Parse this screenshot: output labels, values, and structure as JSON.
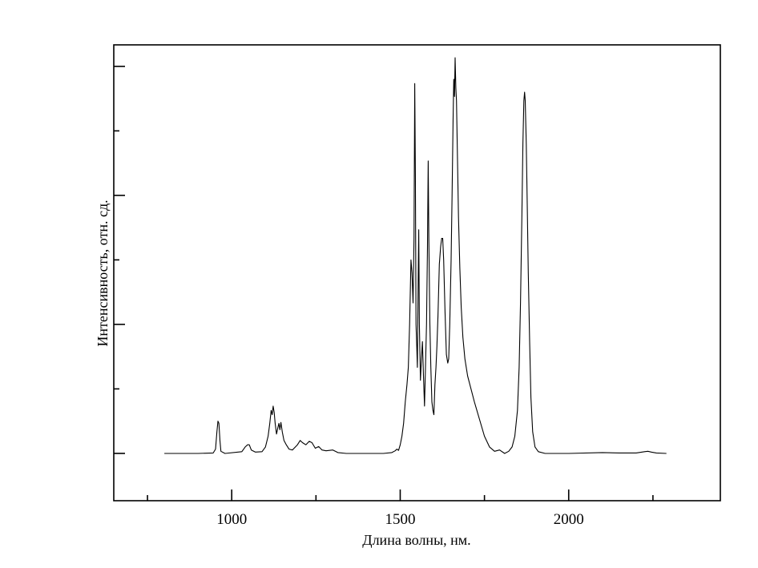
{
  "chart_data": {
    "type": "line",
    "title": "",
    "xlabel": "Длина волны, нм.",
    "ylabel": "Интенсивность, отн. сд.",
    "xlim": [
      650,
      2450
    ],
    "ylim": [
      -0.11,
      0.95
    ],
    "x_ticks_major": [
      1000,
      1500,
      2000
    ],
    "x_ticks_minor": [
      750,
      1250,
      1750,
      2250
    ],
    "y_ticks_major": [
      0,
      0.3,
      0.6,
      0.9
    ],
    "y_ticks_minor": [
      0.15,
      0.45,
      0.75
    ],
    "grid": false,
    "series": [
      {
        "points": [
          [
            800,
            0.0
          ],
          [
            900,
            0.0
          ],
          [
            945,
            0.001
          ],
          [
            952,
            0.01
          ],
          [
            956,
            0.05
          ],
          [
            959,
            0.075
          ],
          [
            962,
            0.07
          ],
          [
            965,
            0.03
          ],
          [
            968,
            0.005
          ],
          [
            980,
            0.0
          ],
          [
            1030,
            0.004
          ],
          [
            1040,
            0.015
          ],
          [
            1047,
            0.02
          ],
          [
            1052,
            0.02
          ],
          [
            1058,
            0.008
          ],
          [
            1070,
            0.003
          ],
          [
            1090,
            0.004
          ],
          [
            1100,
            0.015
          ],
          [
            1108,
            0.04
          ],
          [
            1113,
            0.07
          ],
          [
            1117,
            0.1
          ],
          [
            1120,
            0.09
          ],
          [
            1123,
            0.11
          ],
          [
            1126,
            0.095
          ],
          [
            1129,
            0.07
          ],
          [
            1133,
            0.045
          ],
          [
            1137,
            0.06
          ],
          [
            1140,
            0.07
          ],
          [
            1143,
            0.055
          ],
          [
            1146,
            0.072
          ],
          [
            1150,
            0.05
          ],
          [
            1155,
            0.03
          ],
          [
            1162,
            0.02
          ],
          [
            1170,
            0.01
          ],
          [
            1180,
            0.008
          ],
          [
            1195,
            0.02
          ],
          [
            1203,
            0.03
          ],
          [
            1210,
            0.025
          ],
          [
            1220,
            0.02
          ],
          [
            1230,
            0.028
          ],
          [
            1238,
            0.025
          ],
          [
            1248,
            0.012
          ],
          [
            1258,
            0.016
          ],
          [
            1268,
            0.008
          ],
          [
            1280,
            0.006
          ],
          [
            1300,
            0.008
          ],
          [
            1315,
            0.002
          ],
          [
            1340,
            0.0
          ],
          [
            1400,
            0.0
          ],
          [
            1450,
            0.0
          ],
          [
            1475,
            0.002
          ],
          [
            1485,
            0.006
          ],
          [
            1490,
            0.01
          ],
          [
            1495,
            0.007
          ],
          [
            1500,
            0.02
          ],
          [
            1505,
            0.04
          ],
          [
            1510,
            0.07
          ],
          [
            1515,
            0.12
          ],
          [
            1520,
            0.16
          ],
          [
            1524,
            0.2
          ],
          [
            1528,
            0.3
          ],
          [
            1532,
            0.45
          ],
          [
            1535,
            0.42
          ],
          [
            1538,
            0.35
          ],
          [
            1541,
            0.5
          ],
          [
            1543,
            0.86
          ],
          [
            1545,
            0.65
          ],
          [
            1547,
            0.3
          ],
          [
            1549,
            0.25
          ],
          [
            1551,
            0.2
          ],
          [
            1553,
            0.38
          ],
          [
            1555,
            0.52
          ],
          [
            1557,
            0.3
          ],
          [
            1560,
            0.17
          ],
          [
            1563,
            0.22
          ],
          [
            1566,
            0.26
          ],
          [
            1569,
            0.18
          ],
          [
            1572,
            0.11
          ],
          [
            1575,
            0.2
          ],
          [
            1578,
            0.3
          ],
          [
            1581,
            0.48
          ],
          [
            1583,
            0.68
          ],
          [
            1585,
            0.5
          ],
          [
            1588,
            0.3
          ],
          [
            1591,
            0.2
          ],
          [
            1594,
            0.12
          ],
          [
            1597,
            0.1
          ],
          [
            1600,
            0.09
          ],
          [
            1603,
            0.16
          ],
          [
            1606,
            0.2
          ],
          [
            1609,
            0.25
          ],
          [
            1612,
            0.32
          ],
          [
            1616,
            0.44
          ],
          [
            1620,
            0.48
          ],
          [
            1623,
            0.5
          ],
          [
            1626,
            0.5
          ],
          [
            1629,
            0.45
          ],
          [
            1633,
            0.33
          ],
          [
            1637,
            0.23
          ],
          [
            1641,
            0.21
          ],
          [
            1644,
            0.22
          ],
          [
            1647,
            0.3
          ],
          [
            1651,
            0.45
          ],
          [
            1654,
            0.6
          ],
          [
            1657,
            0.78
          ],
          [
            1659,
            0.87
          ],
          [
            1661,
            0.83
          ],
          [
            1663,
            0.92
          ],
          [
            1665,
            0.85
          ],
          [
            1667,
            0.82
          ],
          [
            1670,
            0.68
          ],
          [
            1673,
            0.55
          ],
          [
            1677,
            0.43
          ],
          [
            1681,
            0.34
          ],
          [
            1686,
            0.27
          ],
          [
            1692,
            0.22
          ],
          [
            1700,
            0.18
          ],
          [
            1710,
            0.15
          ],
          [
            1720,
            0.12
          ],
          [
            1735,
            0.08
          ],
          [
            1750,
            0.04
          ],
          [
            1765,
            0.015
          ],
          [
            1780,
            0.005
          ],
          [
            1795,
            0.008
          ],
          [
            1810,
            0.0
          ],
          [
            1822,
            0.005
          ],
          [
            1832,
            0.015
          ],
          [
            1840,
            0.04
          ],
          [
            1848,
            0.1
          ],
          [
            1853,
            0.2
          ],
          [
            1857,
            0.35
          ],
          [
            1861,
            0.55
          ],
          [
            1864,
            0.72
          ],
          [
            1867,
            0.82
          ],
          [
            1869,
            0.84
          ],
          [
            1871,
            0.82
          ],
          [
            1874,
            0.72
          ],
          [
            1877,
            0.58
          ],
          [
            1880,
            0.42
          ],
          [
            1884,
            0.26
          ],
          [
            1888,
            0.13
          ],
          [
            1893,
            0.05
          ],
          [
            1900,
            0.015
          ],
          [
            1910,
            0.004
          ],
          [
            1930,
            0.0
          ],
          [
            2000,
            0.0
          ],
          [
            2100,
            0.002
          ],
          [
            2150,
            0.001
          ],
          [
            2200,
            0.001
          ],
          [
            2225,
            0.004
          ],
          [
            2235,
            0.005
          ],
          [
            2245,
            0.003
          ],
          [
            2260,
            0.001
          ],
          [
            2290,
            0.0
          ]
        ]
      }
    ]
  }
}
